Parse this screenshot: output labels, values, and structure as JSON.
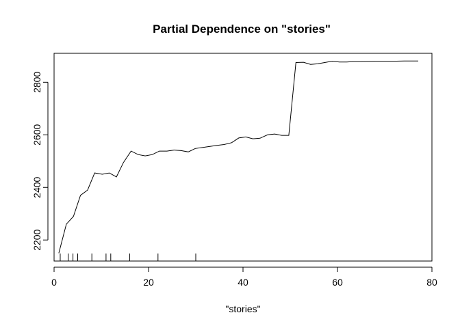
{
  "chart_data": {
    "type": "line",
    "title": "Partial Dependence on \"stories\"",
    "xlabel": "\"stories\"",
    "ylabel": "",
    "xlim": [
      0,
      80
    ],
    "ylim": [
      2120,
      2910
    ],
    "xticks": [
      0,
      20,
      40,
      60,
      80
    ],
    "yticks": [
      2200,
      2400,
      2600,
      2800
    ],
    "grid": false,
    "series": [
      {
        "x": [
          1,
          2.6,
          4.1,
          5.6,
          7.1,
          8.6,
          10.2,
          11.7,
          13.2,
          14.7,
          16.3,
          17.8,
          19.3,
          20.8,
          22.3,
          23.9,
          25.4,
          26.9,
          28.4,
          29.9,
          31.5,
          33.0,
          34.5,
          36.0,
          37.6,
          39.1,
          40.6,
          42.1,
          43.6,
          45.2,
          46.7,
          48.2,
          49.7,
          51.2,
          52.8,
          54.3,
          55.8,
          57.3,
          58.9,
          60.4,
          61.9,
          63.4,
          64.9,
          66.5,
          68.0,
          69.5,
          71.0,
          72.5,
          74.1,
          75.6,
          77.1
        ],
        "y": [
          2150,
          2260,
          2290,
          2370,
          2390,
          2455,
          2450,
          2455,
          2440,
          2495,
          2538,
          2525,
          2520,
          2525,
          2538,
          2538,
          2542,
          2540,
          2535,
          2548,
          2552,
          2556,
          2560,
          2563,
          2570,
          2588,
          2592,
          2585,
          2587,
          2600,
          2603,
          2598,
          2598,
          2875,
          2876,
          2868,
          2870,
          2875,
          2880,
          2877,
          2877,
          2878,
          2878,
          2879,
          2880,
          2880,
          2880,
          2880,
          2881,
          2881,
          2881
        ]
      }
    ],
    "rug": [
      1.3,
      3.0,
      4.0,
      5.0,
      8.0,
      11.0,
      12.0,
      16.0,
      22.0,
      30.0
    ]
  }
}
